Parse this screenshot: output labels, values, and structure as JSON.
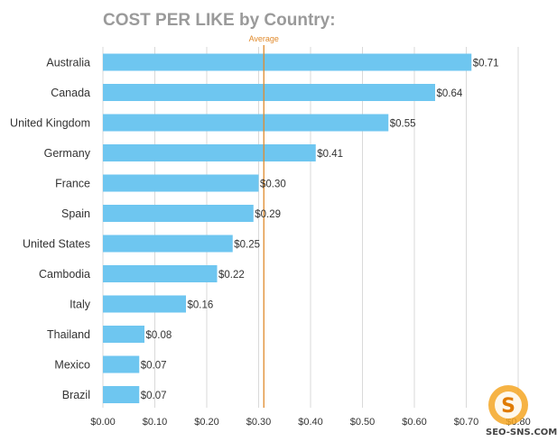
{
  "chart_data": {
    "type": "bar",
    "orientation": "horizontal",
    "title": "COST PER LIKE by Country:",
    "categories": [
      "Australia",
      "Canada",
      "United Kingdom",
      "Germany",
      "France",
      "Spain",
      "United States",
      "Cambodia",
      "Italy",
      "Thailand",
      "Mexico",
      "Brazil"
    ],
    "values": [
      0.71,
      0.64,
      0.55,
      0.41,
      0.3,
      0.29,
      0.25,
      0.22,
      0.16,
      0.08,
      0.07,
      0.07
    ],
    "value_labels": [
      "$0.71",
      "$0.64",
      "$0.55",
      "$0.41",
      "$0.30",
      "$0.29",
      "$0.25",
      "$0.22",
      "$0.16",
      "$0.08",
      "$0.07",
      "$0.07"
    ],
    "x_ticks": [
      0,
      0.1,
      0.2,
      0.3,
      0.4,
      0.5,
      0.6,
      0.7,
      0.8
    ],
    "x_tick_labels": [
      "$0.00",
      "$0.10",
      "$0.20",
      "$0.30",
      "$0.40",
      "$0.50",
      "$0.60",
      "$0.70",
      "$0.80"
    ],
    "xlim": [
      0,
      0.8
    ],
    "grid": true,
    "reference_line": {
      "label": "Average",
      "value": 0.31
    },
    "colors": {
      "bar": "#6ec6f0",
      "average_line": "#e08a2c",
      "grid": "#d9d9d9"
    }
  },
  "watermark": {
    "text": "SEO-SNS.COM",
    "icon": "s-logo-icon"
  }
}
